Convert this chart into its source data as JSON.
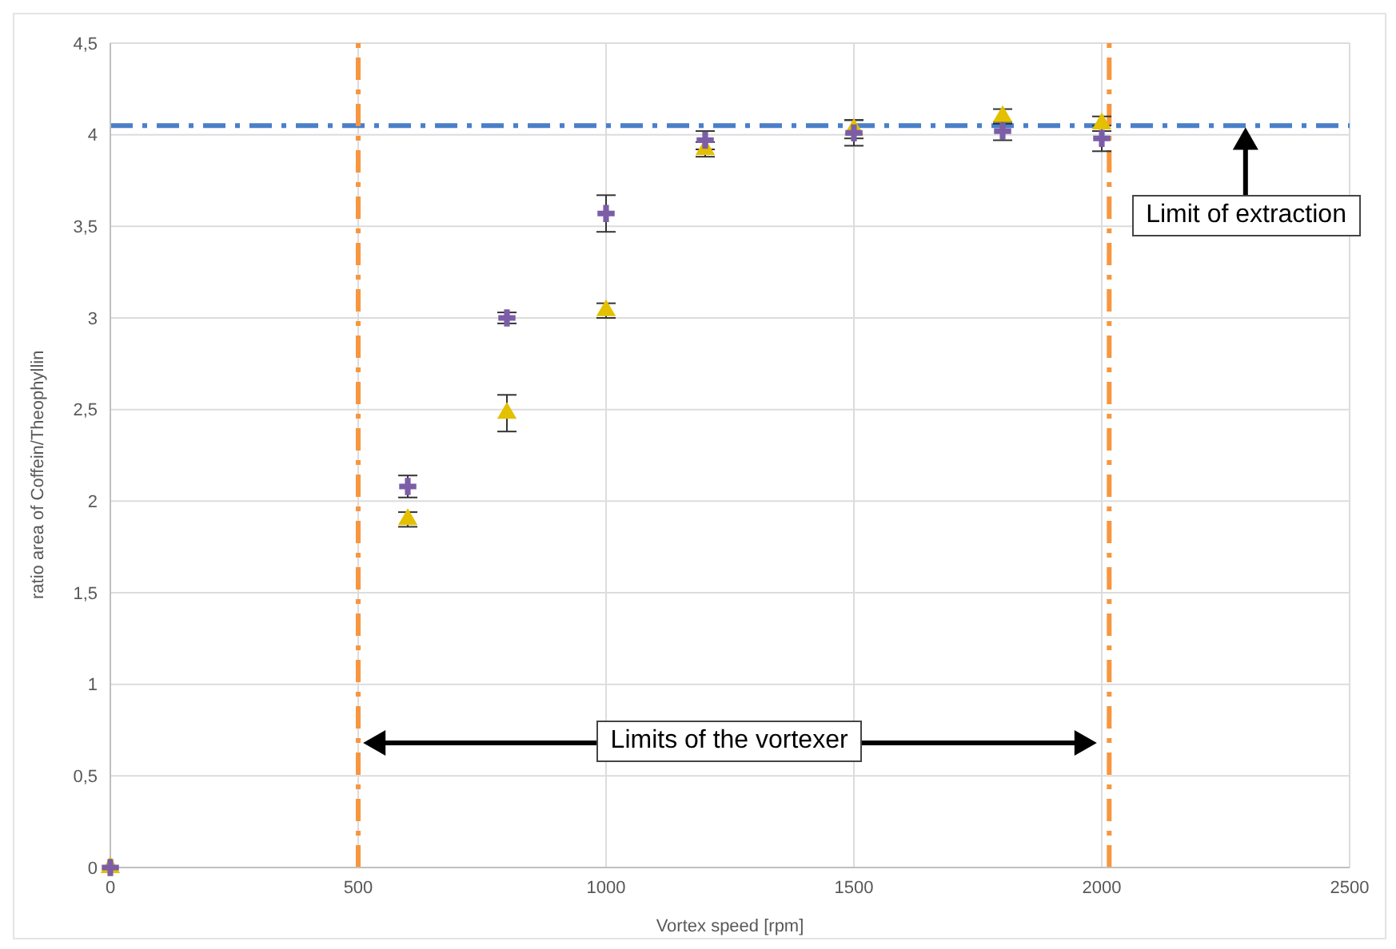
{
  "chart_data": {
    "type": "scatter",
    "xlabel": "Vortex speed [rpm]",
    "ylabel": "ratio area of Coffein/Theophyllin",
    "xlim": [
      0,
      2500
    ],
    "xticks": [
      0,
      500,
      1000,
      1500,
      2000,
      2500
    ],
    "ylim": [
      0,
      4.5
    ],
    "yticks": [
      0,
      {
        "value": 0.5,
        "label": "0,5"
      },
      1,
      {
        "value": 1.5,
        "label": "1,5"
      },
      2,
      {
        "value": 2.5,
        "label": "2,5"
      },
      3,
      {
        "value": 3.5,
        "label": "3,5"
      },
      4,
      {
        "value": 4.5,
        "label": "4,5"
      }
    ],
    "grid": true,
    "legend": false,
    "series": [
      {
        "color": "#7b5ea7",
        "marker": "cross",
        "x": [
          0,
          600,
          800,
          1000,
          1200,
          1500,
          1800,
          2000
        ],
        "values": [
          0,
          2.08,
          3.0,
          3.57,
          3.97,
          4.01,
          4.02,
          3.98
        ],
        "errors": [
          null,
          0.06,
          0.03,
          0.1,
          0.05,
          0.07,
          0.05,
          0.07
        ]
      },
      {
        "color": "#e3c000",
        "marker": "triangle",
        "x": [
          0,
          600,
          800,
          1000,
          1200,
          1500,
          1800,
          2000
        ],
        "values": [
          0,
          1.9,
          2.48,
          3.04,
          3.92,
          4.03,
          4.1,
          4.06
        ],
        "errors": [
          null,
          0.04,
          0.1,
          0.04,
          0.04,
          0.05,
          0.04,
          0.04
        ]
      }
    ],
    "ref_lines": [
      {
        "axis": "y",
        "value": 4.05,
        "color": "#4a7fc9",
        "line_style": "dashed"
      },
      {
        "axis": "x",
        "value": 500,
        "color": "#f7963f",
        "line_style": "dashed"
      },
      {
        "axis": "x",
        "value": 2015,
        "color": "#f7963f",
        "line_style": "dashed"
      }
    ],
    "annotations": [
      "Limit of extraction",
      "Limits of the vortexer"
    ]
  }
}
